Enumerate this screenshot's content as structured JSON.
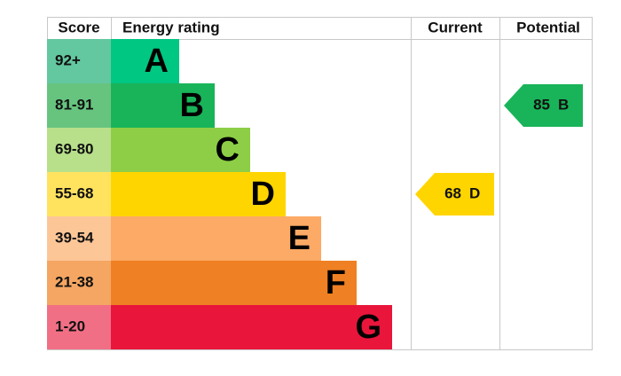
{
  "header": {
    "score": "Score",
    "rating": "Energy rating",
    "current": "Current",
    "potential": "Potential"
  },
  "bands": [
    {
      "score": "92+",
      "letter": "A"
    },
    {
      "score": "81-91",
      "letter": "B"
    },
    {
      "score": "69-80",
      "letter": "C"
    },
    {
      "score": "55-68",
      "letter": "D"
    },
    {
      "score": "39-54",
      "letter": "E"
    },
    {
      "score": "21-38",
      "letter": "F"
    },
    {
      "score": "1-20",
      "letter": "G"
    }
  ],
  "current": {
    "score": 68,
    "letter": "D"
  },
  "potential": {
    "score": 85,
    "letter": "B"
  }
}
